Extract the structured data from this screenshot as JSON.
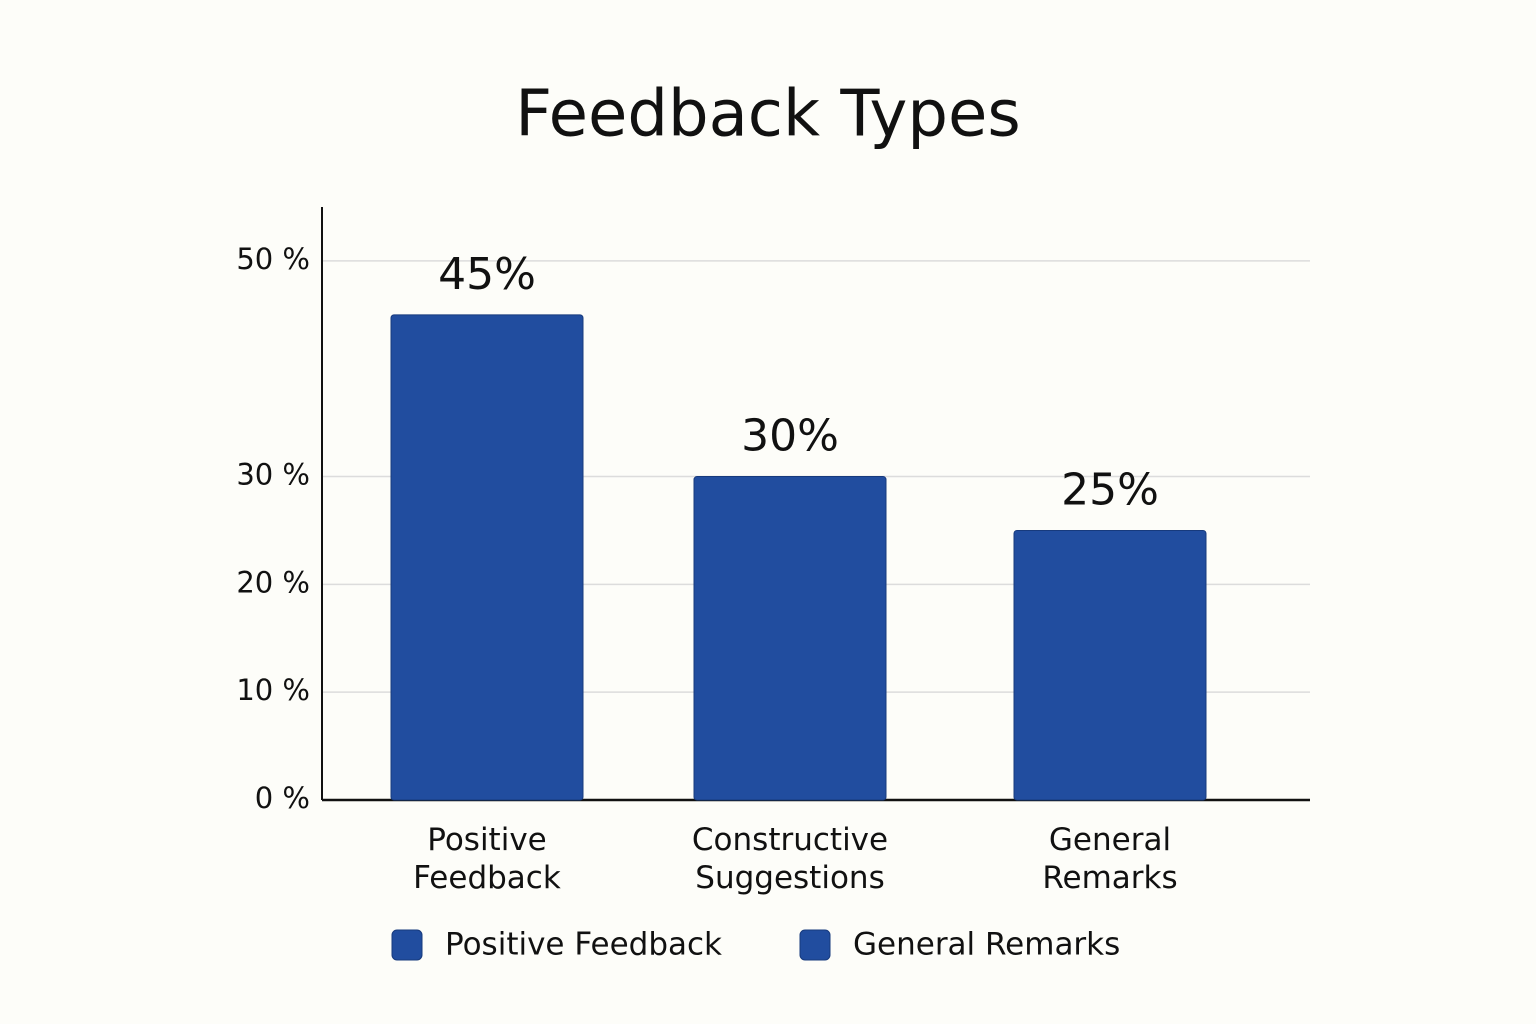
{
  "chart_data": {
    "type": "bar",
    "title": "Feedback Types",
    "categories": [
      "Positive Feedback",
      "Constructive Suggestions",
      "General Remarks"
    ],
    "values": [
      45,
      30,
      25
    ],
    "value_labels": [
      "45%",
      "30%",
      "25%"
    ],
    "color": "#214d9f",
    "ylim": [
      0,
      55
    ],
    "yticks": [
      {
        "value": 0,
        "label": "0 %"
      },
      {
        "value": 10,
        "label": "10 %"
      },
      {
        "value": 20,
        "label": "20 %"
      },
      {
        "value": 30,
        "label": "30 %"
      },
      {
        "value": 50,
        "label": "50 %"
      }
    ],
    "grid": true,
    "legend": [
      "Positive Feedback",
      "General Remarks"
    ]
  }
}
